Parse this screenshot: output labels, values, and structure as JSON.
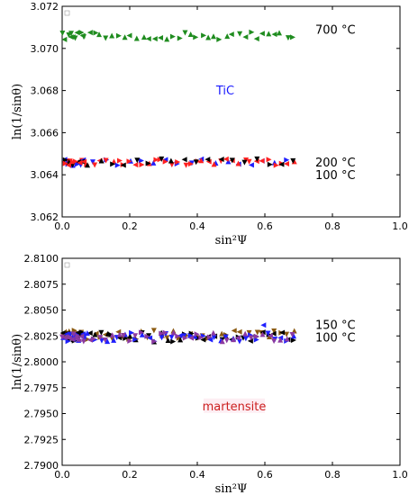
{
  "chart_data": [
    {
      "type": "scatter",
      "xlabel": "sin²Ψ",
      "ylabel": "ln(1/sinθ)",
      "xlim": [
        0.0,
        1.0
      ],
      "ylim": [
        3.062,
        3.072
      ],
      "xticks": [
        "0.0",
        "0.2",
        "0.4",
        "0.6",
        "0.8",
        "1.0"
      ],
      "yticks": [
        "3.062",
        "3.064",
        "3.066",
        "3.068",
        "3.070",
        "3.072"
      ],
      "inset_label": "TiC",
      "inset_color": "#1a1aff",
      "series": [
        {
          "label": "700 °C",
          "color": "#1f8c1f",
          "y_center": 3.0706,
          "label_y": 3.0709,
          "scatter": 0.00018
        },
        {
          "label": "200 °C",
          "color": "#ff2020",
          "y_center": 3.0646,
          "label_y": 3.0646,
          "scatter": 0.00016
        },
        {
          "label": "100 °C",
          "color": "#1f1fff",
          "y_center": 3.0646,
          "label_y": 3.064,
          "scatter": 0.00016
        }
      ],
      "extra_series_colors": [
        "#000000",
        "#ff2020"
      ]
    },
    {
      "type": "scatter",
      "xlabel": "sin²Ψ",
      "ylabel": "ln(1/sinθ)",
      "xlim": [
        0.0,
        1.0
      ],
      "ylim": [
        2.79,
        2.81
      ],
      "xticks": [
        "0.0",
        "0.2",
        "0.4",
        "0.6",
        "0.8",
        "1.0"
      ],
      "yticks": [
        "2.7900",
        "2.7925",
        "2.7950",
        "2.7975",
        "2.8000",
        "2.8025",
        "2.8050",
        "2.8075",
        "2.8100"
      ],
      "inset_label": "martensite",
      "inset_color": "#cc2020",
      "series": [
        {
          "label": "150 °C",
          "color": "#8b5a10",
          "y_center": 2.8026,
          "label_y": 2.8036,
          "scatter": 0.00045
        },
        {
          "label": "100 °C",
          "color": "#000000",
          "y_center": 2.8024,
          "label_y": 2.8024,
          "scatter": 0.00045
        }
      ],
      "extra_series_colors": [
        "#1f1fff",
        "#8b3aa0"
      ]
    }
  ]
}
